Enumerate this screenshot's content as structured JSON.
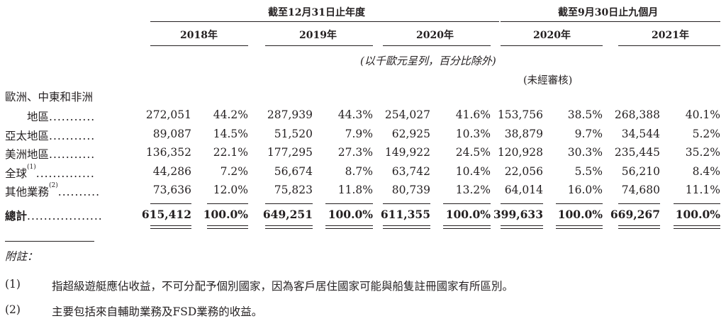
{
  "header": {
    "group1": "截至12月31日止年度",
    "group2": "截至9月30日止九個月",
    "years": [
      "2018年",
      "2019年",
      "2020年",
      "2020年",
      "2021年"
    ],
    "unit_note": "(以千歐元呈列，百分比除外)",
    "unaudited": "(未經審核)"
  },
  "rows": [
    {
      "label_line1": "歐洲、中東和非洲",
      "label": "地區",
      "dots": "...........",
      "sup": "",
      "values": [
        "272,051",
        "44.2%",
        "287,939",
        "44.3%",
        "254,027",
        "41.6%",
        "153,756",
        "38.5%",
        "268,388",
        "40.1%"
      ]
    },
    {
      "label": "亞太地區",
      "dots": "...........",
      "sup": "",
      "values": [
        "89,087",
        "14.5%",
        "51,520",
        "7.9%",
        "62,925",
        "10.3%",
        "38,879",
        "9.7%",
        "34,544",
        "5.2%"
      ]
    },
    {
      "label": "美洲地區",
      "dots": "...........",
      "sup": "",
      "values": [
        "136,352",
        "22.1%",
        "177,295",
        "27.3%",
        "149,922",
        "24.5%",
        "120,928",
        "30.3%",
        "235,445",
        "35.2%"
      ]
    },
    {
      "label": "全球",
      "dots": "..............",
      "sup": "(1)",
      "values": [
        "44,286",
        "7.2%",
        "56,674",
        "8.7%",
        "63,742",
        "10.4%",
        "22,056",
        "5.5%",
        "56,210",
        "8.4%"
      ]
    },
    {
      "label": "其他業務",
      "dots": "..........",
      "sup": "(2)",
      "values": [
        "73,636",
        "12.0%",
        "75,823",
        "11.8%",
        "80,739",
        "13.2%",
        "64,014",
        "16.0%",
        "74,680",
        "11.1%"
      ]
    }
  ],
  "total": {
    "label": "總計",
    "dots": "..................",
    "values": [
      "615,412",
      "100.0%",
      "649,251",
      "100.0%",
      "611,355",
      "100.0%",
      "399,633",
      "100.0%",
      "669,267",
      "100.0%"
    ]
  },
  "notes": {
    "heading": "附註：",
    "items": [
      {
        "num": "(1)",
        "text": "指超級遊艇應佔收益，不可分配予個別國家，因為客戶居住國家可能與船隻註冊國家有所區別。"
      },
      {
        "num": "(2)",
        "text": "主要包括來自輔助業務及FSD業務的收益。"
      }
    ]
  }
}
